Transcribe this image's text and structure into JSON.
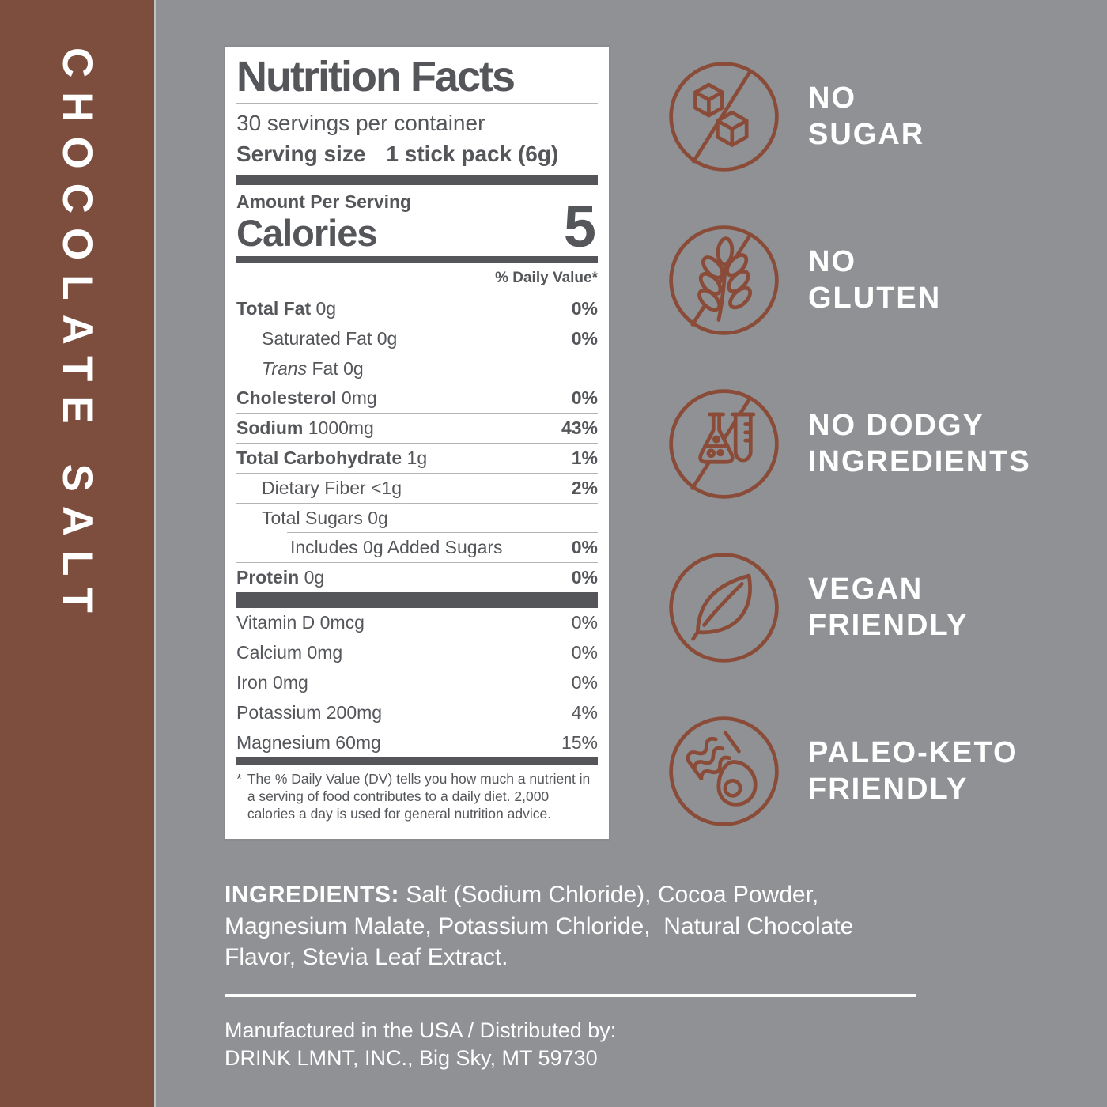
{
  "product": {
    "name": "CHOCOLATE SALT"
  },
  "nutrition": {
    "title": "Nutrition Facts",
    "servings_per_container": "30 servings per container",
    "serving_size_label": "Serving size",
    "serving_size_value": "1 stick pack (6g)",
    "amount_per_serving": "Amount Per Serving",
    "calories_label": "Calories",
    "calories_value": "5",
    "daily_value_header": "% Daily Value*",
    "rows": [
      {
        "bold": "Total Fat",
        "rest": "0g",
        "dv": "0%",
        "dvBold": true
      },
      {
        "rest": "Saturated Fat 0g",
        "dv": "0%",
        "dvBold": true,
        "indent": 1
      },
      {
        "italic": "Trans",
        "rest": "Fat 0g",
        "dv": "",
        "indent": 1
      },
      {
        "bold": "Cholesterol",
        "rest": "0mg",
        "dv": "0%",
        "dvBold": true
      },
      {
        "bold": "Sodium",
        "rest": "1000mg",
        "dv": "43%",
        "dvBold": true
      },
      {
        "bold": "Total Carbohydrate",
        "rest": "1g",
        "dv": "1%",
        "dvBold": true
      },
      {
        "rest": "Dietary Fiber <1g",
        "dv": "2%",
        "dvBold": true,
        "indent": 1
      },
      {
        "rest": "Total Sugars 0g",
        "dv": "",
        "indent": 1
      },
      {
        "rest": "Includes 0g Added Sugars",
        "dv": "0%",
        "dvBold": true,
        "indent": 2,
        "insetTop": true
      },
      {
        "bold": "Protein",
        "rest": "0g",
        "dv": "0%",
        "dvBold": true
      }
    ],
    "vitamins": [
      {
        "rest": "Vitamin D 0mcg",
        "dv": "0%"
      },
      {
        "rest": "Calcium 0mg",
        "dv": "0%"
      },
      {
        "rest": "Iron 0mg",
        "dv": "0%"
      },
      {
        "rest": "Potassium 200mg",
        "dv": "4%"
      },
      {
        "rest": "Magnesium 60mg",
        "dv": "15%"
      }
    ],
    "footnote_star": "*",
    "footnote": "The % Daily Value (DV) tells you how much a nutrient in a serving of food contributes to a daily diet. 2,000 calories a day is used for general nutrition advice."
  },
  "badges": [
    {
      "id": "no-sugar",
      "line1": "NO",
      "line2": "SUGAR"
    },
    {
      "id": "no-gluten",
      "line1": "NO",
      "line2": "GLUTEN"
    },
    {
      "id": "no-dodgy-ingredients",
      "line1": "NO DODGY",
      "line2": "INGREDIENTS"
    },
    {
      "id": "vegan-friendly",
      "line1": "VEGAN",
      "line2": "FRIENDLY"
    },
    {
      "id": "paleo-keto-friendly",
      "line1": "PALEO-KETO",
      "line2": "FRIENDLY"
    }
  ],
  "ingredients": {
    "label": "INGREDIENTS:",
    "text": "Salt (Sodium Chloride), Cocoa Powder, Magnesium Malate, Potassium Chloride,  Natural Chocolate Flavor, Stevia Leaf Extract."
  },
  "distribution": {
    "line1": "Manufactured in the USA / Distributed by:",
    "line2": "DRINK LMNT, INC., Big Sky, MT 59730"
  },
  "colors": {
    "background": "#8f9194",
    "flavor_bar": "#7d4e3e",
    "icon_stroke": "#8a4c38",
    "label_text": "#54565a",
    "text_white": "#ffffff"
  }
}
